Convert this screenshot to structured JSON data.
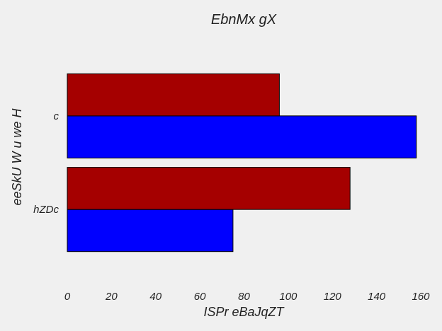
{
  "chart_data": {
    "type": "bar",
    "orientation": "horizontal",
    "title": "EbnMx gX",
    "xlabel": "ISPr  eBaJqZT",
    "ylabel": "eeSkU W u we H",
    "categories": [
      "c",
      "hZDc"
    ],
    "series": [
      {
        "color": "#0000ff",
        "values": [
          158,
          75
        ]
      },
      {
        "color": "#a50000",
        "values": [
          96,
          128
        ]
      }
    ],
    "xlim": [
      0,
      160
    ],
    "xticks": [
      0,
      20,
      40,
      60,
      80,
      100,
      120,
      140,
      160
    ],
    "grid": false,
    "legend": "none"
  }
}
